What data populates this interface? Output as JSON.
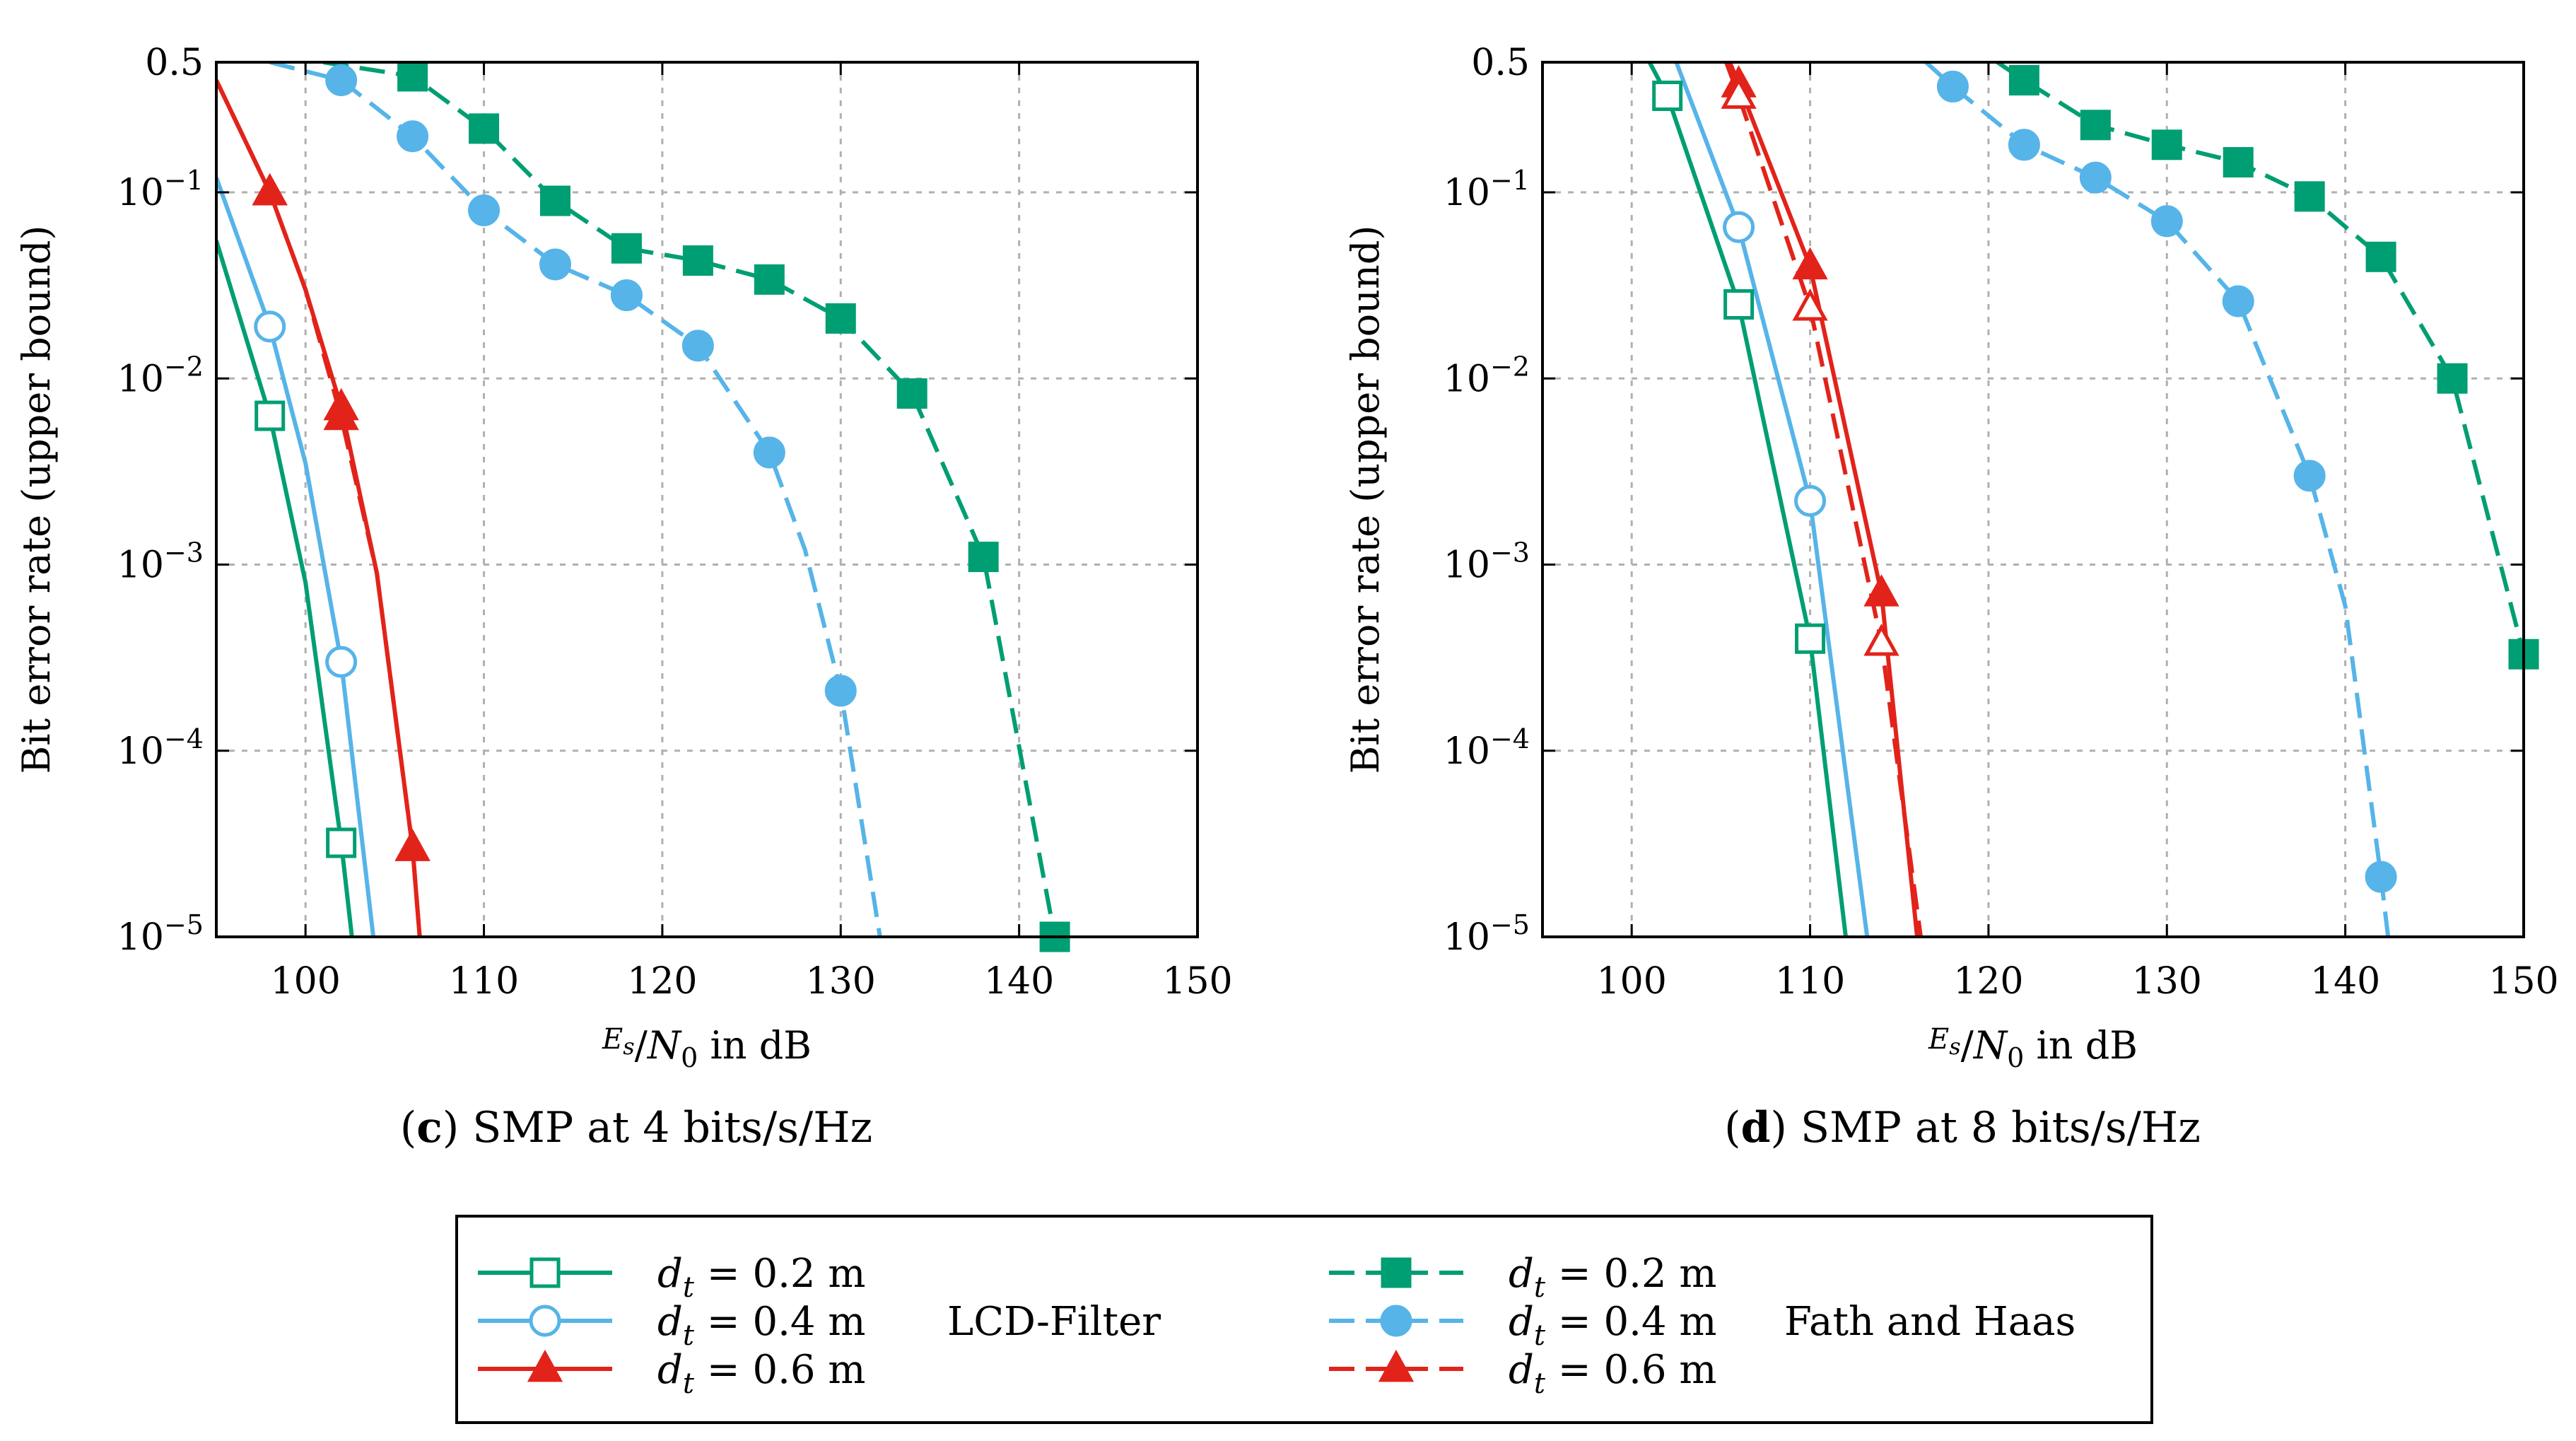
{
  "colors": {
    "green": "#009E73",
    "blue": "#56B4E9",
    "red": "#E2231A"
  },
  "legend": {
    "entries": [
      {
        "series": "d_t = 0.2 m",
        "var": "d",
        "sub": "t",
        "eq": "= 0.2 m",
        "color": "#009E73",
        "dash": false,
        "marker": "square",
        "filled": false
      },
      {
        "series": "d_t = 0.4 m",
        "var": "d",
        "sub": "t",
        "eq": "= 0.4 m",
        "color": "#56B4E9",
        "dash": false,
        "marker": "circle",
        "filled": false
      },
      {
        "series": "d_t = 0.6 m",
        "var": "d",
        "sub": "t",
        "eq": "= 0.6 m",
        "color": "#E2231A",
        "dash": false,
        "marker": "triangle",
        "filled": true
      },
      {
        "series": "d_t = 0.2 m",
        "var": "d",
        "sub": "t",
        "eq": "= 0.2 m",
        "color": "#009E73",
        "dash": true,
        "marker": "square",
        "filled": true
      },
      {
        "series": "d_t = 0.4 m",
        "var": "d",
        "sub": "t",
        "eq": "= 0.4 m",
        "color": "#56B4E9",
        "dash": true,
        "marker": "circle",
        "filled": true
      },
      {
        "series": "d_t = 0.6 m",
        "var": "d",
        "sub": "t",
        "eq": "= 0.6 m",
        "color": "#E2231A",
        "dash": true,
        "marker": "triangle",
        "filled": true
      }
    ],
    "group_labels": [
      "LCD-Filter",
      "Fath and Haas"
    ]
  },
  "chart_data": [
    {
      "type": "line",
      "panel": "c",
      "caption_letter": "c",
      "caption": "SMP at 4 bits/s/Hz",
      "xlabel": "Es/N0 in dB",
      "xlabel_parts": {
        "num": "E",
        "num_sub": "s",
        "den": "N",
        "den_sub": "0",
        "suffix": " in dB"
      },
      "ylabel": "Bit error rate (upper bound)",
      "xlim": [
        95,
        150
      ],
      "ylim": [
        1e-05,
        0.5
      ],
      "yscale": "log",
      "xticks": [
        100,
        110,
        120,
        130,
        140,
        150
      ],
      "yticks": [
        {
          "value": 0.5,
          "label": "0.5"
        },
        {
          "value": 0.1,
          "label": "10",
          "exp": "−1"
        },
        {
          "value": 0.01,
          "label": "10",
          "exp": "−2"
        },
        {
          "value": 0.001,
          "label": "10",
          "exp": "−3"
        },
        {
          "value": 0.0001,
          "label": "10",
          "exp": "−4"
        },
        {
          "value": 1e-05,
          "label": "10",
          "exp": "−5"
        }
      ],
      "grid": true,
      "series": [
        {
          "name": "LCD-Filter d_t = 0.2 m",
          "color": "#009E73",
          "dash": false,
          "marker": "square",
          "filled": false,
          "x": [
            95,
            98,
            100,
            102,
            102.6
          ],
          "y": [
            0.055,
            0.0063,
            0.0008,
            3.2e-05,
            1e-05
          ],
          "marker_x": [
            98,
            102
          ],
          "marker_y": [
            0.0063,
            3.2e-05
          ]
        },
        {
          "name": "LCD-Filter d_t = 0.4 m",
          "color": "#56B4E9",
          "dash": false,
          "marker": "circle",
          "filled": false,
          "x": [
            95,
            98,
            100,
            102,
            103.8
          ],
          "y": [
            0.12,
            0.019,
            0.0035,
            0.0003,
            1e-05
          ],
          "marker_x": [
            98,
            102
          ],
          "marker_y": [
            0.019,
            0.0003
          ]
        },
        {
          "name": "LCD-Filter d_t = 0.6 m",
          "color": "#E2231A",
          "dash": false,
          "marker": "triangle",
          "filled": true,
          "x": [
            95,
            96.5,
            98,
            100,
            102,
            104,
            106,
            106.4
          ],
          "y": [
            0.4,
            0.2,
            0.1,
            0.03,
            0.007,
            0.0009,
            3e-05,
            1e-05
          ],
          "marker_x": [
            98,
            102,
            106
          ],
          "marker_y": [
            0.1,
            0.007,
            3e-05
          ]
        },
        {
          "name": "Fath and Haas d_t = 0.2 m",
          "color": "#009E73",
          "dash": true,
          "marker": "square",
          "filled": true,
          "x": [
            101,
            106,
            110,
            114,
            118,
            122,
            126,
            130,
            134,
            138,
            142
          ],
          "y": [
            0.5,
            0.42,
            0.22,
            0.09,
            0.05,
            0.043,
            0.034,
            0.021,
            0.0083,
            0.0011,
            1e-05
          ],
          "marker_x": [
            106,
            110,
            114,
            118,
            122,
            126,
            130,
            134,
            138,
            142
          ],
          "marker_y": [
            0.42,
            0.22,
            0.09,
            0.05,
            0.043,
            0.034,
            0.021,
            0.0083,
            0.0011,
            1e-05
          ]
        },
        {
          "name": "Fath and Haas d_t = 0.4 m",
          "color": "#56B4E9",
          "dash": true,
          "marker": "circle",
          "filled": true,
          "x": [
            98,
            102,
            106,
            110,
            114,
            118,
            122,
            126,
            128,
            130,
            132.2
          ],
          "y": [
            0.5,
            0.4,
            0.2,
            0.08,
            0.041,
            0.028,
            0.015,
            0.004,
            0.0012,
            0.00021,
            1e-05
          ],
          "marker_x": [
            102,
            106,
            110,
            114,
            118,
            122,
            126,
            130
          ],
          "marker_y": [
            0.4,
            0.2,
            0.08,
            0.041,
            0.028,
            0.015,
            0.004,
            0.00021
          ]
        },
        {
          "name": "Fath and Haas d_t = 0.6 m",
          "color": "#E2231A",
          "dash": true,
          "marker": "triangle",
          "filled": true,
          "x": [
            95,
            96.5,
            98,
            100,
            102,
            104,
            106,
            106.4
          ],
          "y": [
            0.4,
            0.2,
            0.1,
            0.03,
            0.0062,
            0.0009,
            3e-05,
            1e-05
          ],
          "marker_x": [
            98,
            102,
            106
          ],
          "marker_y": [
            0.1,
            0.0062,
            3e-05
          ]
        }
      ]
    },
    {
      "type": "line",
      "panel": "d",
      "caption_letter": "d",
      "caption": "SMP at 8 bits/s/Hz",
      "xlabel": "Es/N0 in dB",
      "xlabel_parts": {
        "num": "E",
        "num_sub": "s",
        "den": "N",
        "den_sub": "0",
        "suffix": " in dB"
      },
      "ylabel": "Bit error rate (upper bound)",
      "xlim": [
        95,
        150
      ],
      "ylim": [
        1e-05,
        0.5
      ],
      "yscale": "log",
      "xticks": [
        100,
        110,
        120,
        130,
        140,
        150
      ],
      "yticks": [
        {
          "value": 0.5,
          "label": "0.5"
        },
        {
          "value": 0.1,
          "label": "10",
          "exp": "−1"
        },
        {
          "value": 0.01,
          "label": "10",
          "exp": "−2"
        },
        {
          "value": 0.001,
          "label": "10",
          "exp": "−3"
        },
        {
          "value": 0.0001,
          "label": "10",
          "exp": "−4"
        },
        {
          "value": 1e-05,
          "label": "10",
          "exp": "−5"
        }
      ],
      "grid": true,
      "series": [
        {
          "name": "LCD-Filter d_t = 0.2 m",
          "color": "#009E73",
          "dash": false,
          "marker": "square",
          "filled": false,
          "x": [
            101,
            102,
            106,
            110,
            112
          ],
          "y": [
            0.5,
            0.33,
            0.025,
            0.0004,
            1e-05
          ],
          "marker_x": [
            102,
            106,
            110
          ],
          "marker_y": [
            0.33,
            0.025,
            0.0004
          ]
        },
        {
          "name": "LCD-Filter d_t = 0.4 m",
          "color": "#56B4E9",
          "dash": false,
          "marker": "circle",
          "filled": false,
          "x": [
            102.5,
            106,
            110,
            113.2
          ],
          "y": [
            0.5,
            0.065,
            0.0022,
            1e-05
          ],
          "marker_x": [
            106,
            110
          ],
          "marker_y": [
            0.065,
            0.0022
          ]
        },
        {
          "name": "LCD-Filter d_t = 0.6 m",
          "color": "#E2231A",
          "dash": false,
          "marker": "triangle",
          "filled": true,
          "x": [
            105.5,
            106,
            110,
            114,
            116
          ],
          "y": [
            0.5,
            0.38,
            0.04,
            0.0007,
            1e-05
          ],
          "marker_x": [
            106,
            110,
            114
          ],
          "marker_y": [
            0.38,
            0.04,
            0.0007
          ]
        },
        {
          "name": "Fath and Haas d_t = 0.2 m",
          "color": "#009E73",
          "dash": true,
          "marker": "square",
          "filled": true,
          "x": [
            120.5,
            122,
            126,
            130,
            134,
            138,
            142,
            146,
            150
          ],
          "y": [
            0.5,
            0.4,
            0.23,
            0.18,
            0.145,
            0.095,
            0.045,
            0.01,
            0.00033
          ],
          "marker_x": [
            122,
            126,
            130,
            134,
            138,
            142,
            146,
            150
          ],
          "marker_y": [
            0.4,
            0.23,
            0.18,
            0.145,
            0.095,
            0.045,
            0.01,
            0.00033
          ]
        },
        {
          "name": "Fath and Haas d_t = 0.4 m",
          "color": "#56B4E9",
          "dash": true,
          "marker": "circle",
          "filled": true,
          "x": [
            116.5,
            118,
            122,
            126,
            130,
            134,
            138,
            140,
            142,
            142.4
          ],
          "y": [
            0.5,
            0.37,
            0.18,
            0.12,
            0.07,
            0.026,
            0.003,
            0.0006,
            2.1e-05,
            1e-05
          ],
          "marker_x": [
            118,
            122,
            126,
            130,
            134,
            138,
            142
          ],
          "marker_y": [
            0.37,
            0.18,
            0.12,
            0.07,
            0.026,
            0.003,
            2.1e-05
          ]
        },
        {
          "name": "Fath and Haas d_t = 0.6 m",
          "color": "#E2231A",
          "dash": true,
          "marker": "triangle",
          "filled": false,
          "x": [
            105.3,
            106,
            110,
            114,
            116.2
          ],
          "y": [
            0.5,
            0.33,
            0.024,
            0.00038,
            1e-05
          ],
          "marker_x": [
            106,
            110,
            114
          ],
          "marker_y": [
            0.33,
            0.024,
            0.00038
          ]
        }
      ]
    }
  ]
}
